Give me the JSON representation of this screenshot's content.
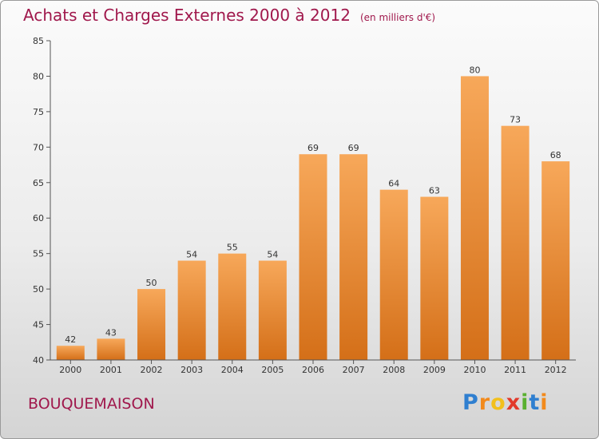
{
  "header": {
    "title": "Achats et Charges Externes 2000 à 2012",
    "unit_note": "(en milliers d'€)"
  },
  "footer": {
    "commune": "BOUQUEMAISON",
    "logo_text": "Proxiti"
  },
  "colors": {
    "bar_top": "#f7a85a",
    "bar_bottom": "#d46f18",
    "title": "#a0184c",
    "axis": "#555555"
  },
  "chart_data": {
    "type": "bar",
    "title": "Achats et Charges Externes 2000 à 2012",
    "subtitle": "(en milliers d'€)",
    "categories": [
      "2000",
      "2001",
      "2002",
      "2003",
      "2004",
      "2005",
      "2006",
      "2007",
      "2008",
      "2009",
      "2010",
      "2011",
      "2012"
    ],
    "values": [
      42,
      43,
      50,
      54,
      55,
      54,
      69,
      69,
      64,
      63,
      80,
      73,
      68
    ],
    "ylim": [
      40,
      85
    ],
    "yticks": [
      40,
      45,
      50,
      55,
      60,
      65,
      70,
      75,
      80,
      85
    ],
    "grid": false,
    "legend": "none"
  }
}
